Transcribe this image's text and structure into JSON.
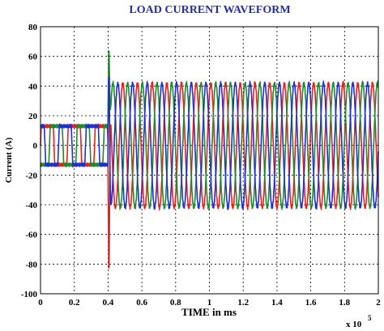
{
  "chart_data": {
    "type": "line",
    "title": "LOAD CURRENT WAVEFORM",
    "xlabel": "TIME in ms",
    "ylabel": "Current (A)",
    "x_multiplier": "x 10",
    "x_multiplier_exponent": "5",
    "xlim": [
      0,
      2
    ],
    "ylim": [
      -100,
      80
    ],
    "x_ticks": [
      "0",
      "0.2",
      "0.4",
      "0.6",
      "0.8",
      "1",
      "1.2",
      "1.4",
      "1.6",
      "1.8",
      "2"
    ],
    "y_ticks": [
      "80",
      "60",
      "40",
      "20",
      "0",
      "-20",
      "-40",
      "-60",
      "-80",
      "-100"
    ],
    "grid": true,
    "series": [
      {
        "color": "#e8201e",
        "before_switch": {
          "amplitude": 13,
          "shape": "square",
          "phase_deg": 0
        },
        "transient": {
          "x": 0.405,
          "peak": -83
        },
        "after_switch": {
          "amplitude": 42,
          "shape": "sine",
          "phase_deg": 0,
          "cycles_per_unit": 11.5
        }
      },
      {
        "color": "#1d8a2c",
        "before_switch": {
          "amplitude": 13,
          "shape": "square",
          "phase_deg": 120
        },
        "transient": {
          "x": 0.405,
          "peak": 64
        },
        "after_switch": {
          "amplitude": 42,
          "shape": "sine",
          "phase_deg": 120,
          "cycles_per_unit": 11.5
        }
      },
      {
        "color": "#1f2fd0",
        "before_switch": {
          "amplitude": 13,
          "shape": "square",
          "phase_deg": 240
        },
        "transient": {
          "x": 0.405,
          "peak": 46
        },
        "after_switch": {
          "amplitude": 42,
          "shape": "sine",
          "phase_deg": 240,
          "cycles_per_unit": 11.5
        }
      }
    ],
    "switch_time": 0.4
  }
}
